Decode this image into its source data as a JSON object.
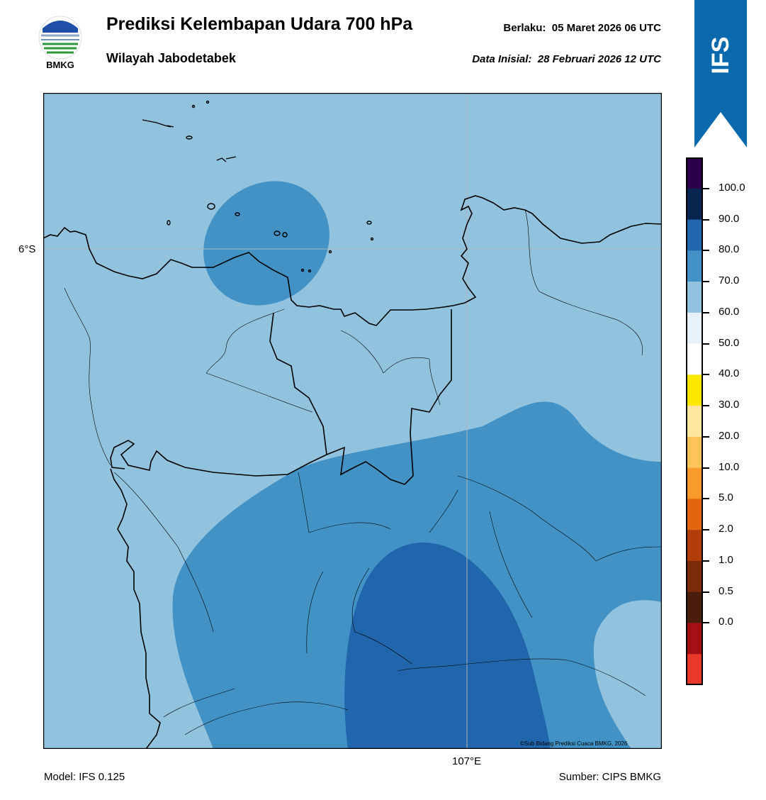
{
  "header": {
    "logo_text": "BMKG",
    "title": "Prediksi Kelembapan Udara 700 hPa",
    "subtitle": "Wilayah Jabodetabek",
    "valid_label": "Berlaku:",
    "valid_time": "05 Maret 2026 06 UTC",
    "init_label": "Data Inisial:",
    "init_time": "28 Februari 2026 12 UTC",
    "model_badge": "IFS"
  },
  "map": {
    "lat_label": "6°S",
    "lon_label": "107°E",
    "copyright": "©Sub Bidang Prediksi Cuaca BMKG, 2026",
    "fill_colors": {
      "60-70": "#92c3de",
      "70-80": "#4292c6",
      "80-90": "#2166ac"
    }
  },
  "colorbar": {
    "ticks": [
      "100.0",
      "90.0",
      "80.0",
      "70.0",
      "60.0",
      "50.0",
      "40.0",
      "30.0",
      "20.0",
      "10.0",
      "5.0",
      "2.0",
      "1.0",
      "0.5",
      "0.0"
    ],
    "colors_top_to_bottom": [
      "#2d004b",
      "#08254f",
      "#2166ac",
      "#4292c6",
      "#92c3de",
      "#e8f0f8",
      "#ffffff",
      "#ffe800",
      "#fee6a0",
      "#fdc45a",
      "#f99b2b",
      "#e46510",
      "#b23d0b",
      "#7b2a0c",
      "#4a1d0c",
      "#a50f15",
      "#e8392a"
    ]
  },
  "footer": {
    "model": "Model: IFS 0.125",
    "source": "Sumber: CIPS BMKG"
  }
}
